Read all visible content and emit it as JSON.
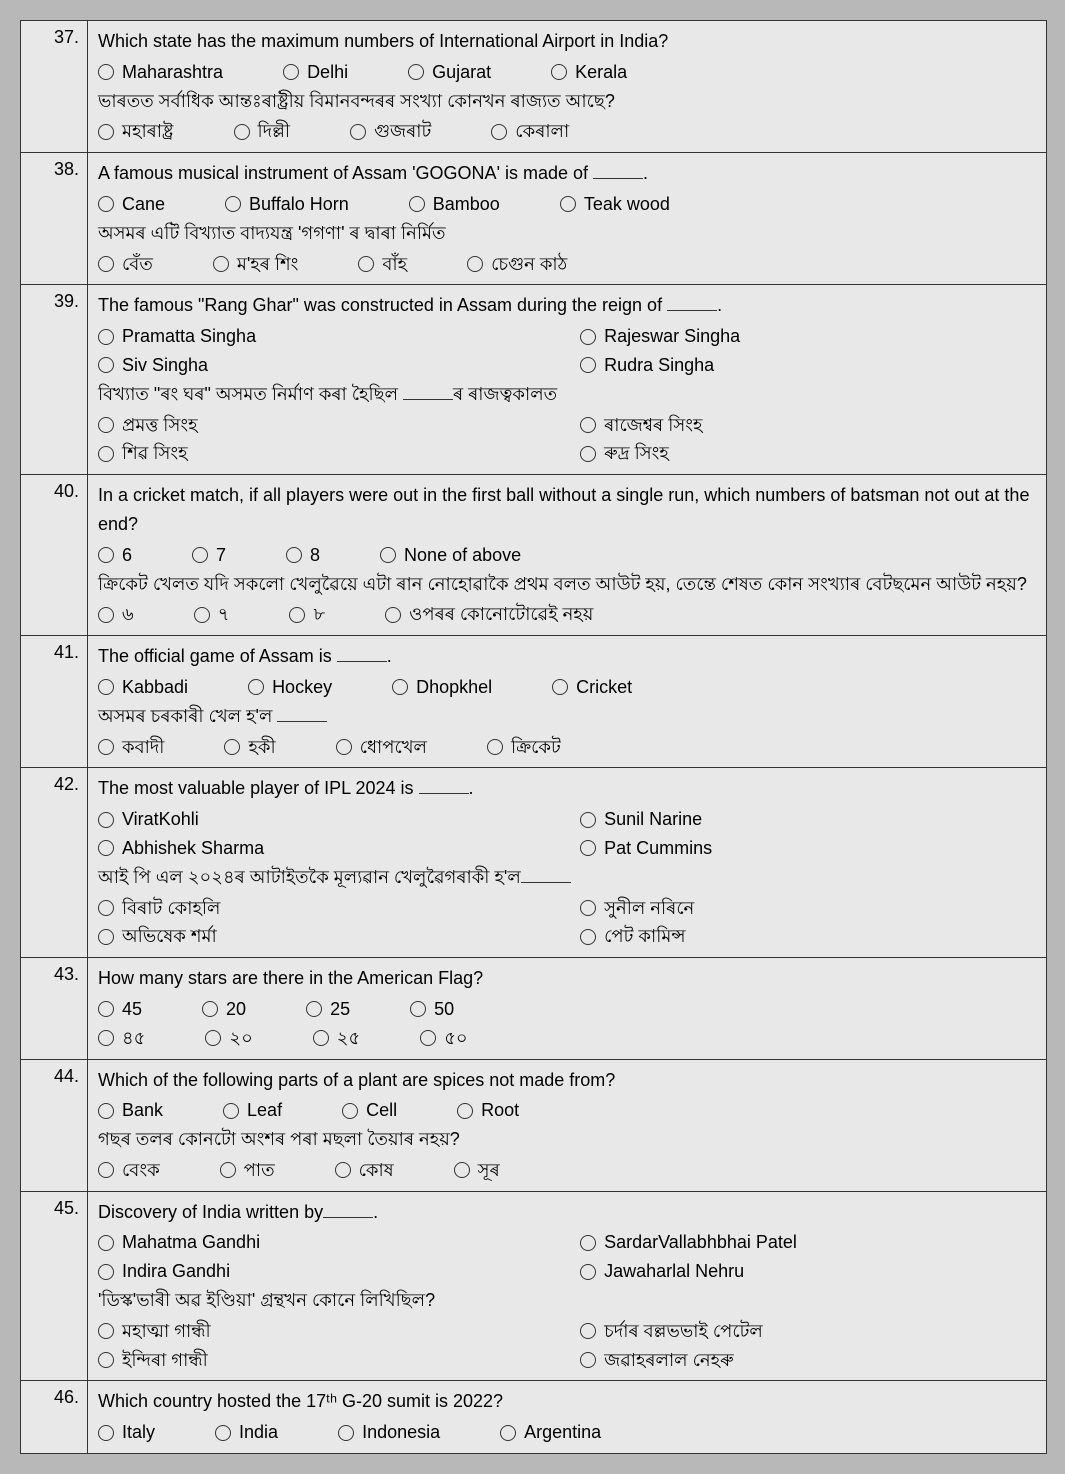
{
  "questions": [
    {
      "num": "37.",
      "text_en": "Which state has the maximum numbers of International Airport in India?",
      "opts_en": [
        "Maharashtra",
        "Delhi",
        "Gujarat",
        "Kerala"
      ],
      "text_as": "ভাৰতত সৰ্বাধিক আন্তঃৰাষ্ট্ৰীয় বিমানবন্দৰৰ সংখ্যা কোনখন ৰাজ্যত আছে?",
      "opts_as": [
        "মহাৰাষ্ট্ৰ",
        "দিল্লী",
        "গুজৰাট",
        "কেৰালা"
      ]
    },
    {
      "num": "38.",
      "text_en_pre": "A famous musical instrument of Assam 'GOGONA' is made of ",
      "text_en_post": ".",
      "opts_en": [
        "Cane",
        "Buffalo Horn",
        "Bamboo",
        "Teak wood"
      ],
      "text_as": "অসমৰ এটি বিখ্যাত বাদ্যযন্ত্ৰ 'গগণা' ৰ দ্বাৰা নিৰ্মিত",
      "opts_as": [
        "বেঁত",
        "ম'হৰ শিং",
        "বাঁহ",
        "চেগুন কাঠ"
      ]
    },
    {
      "num": "39.",
      "text_en_pre": "The famous \"Rang Ghar\" was constructed in Assam during the reign of ",
      "text_en_post": ".",
      "opts_en": [
        "Pramatta Singha",
        "Rajeswar Singha",
        "Siv Singha",
        "Rudra Singha"
      ],
      "text_as_pre": "বিখ্যাত \"ৰং ঘৰ\" অসমত নিৰ্মাণ কৰা হৈছিল ",
      "text_as_post": "ৰ ৰাজত্বকালত",
      "opts_as": [
        "প্ৰমত্ত সিংহ",
        "ৰাজেশ্বৰ সিংহ",
        "শিৱ সিংহ",
        "ৰুদ্ৰ সিংহ"
      ]
    },
    {
      "num": "40.",
      "text_en": "In a cricket match, if all players were out in the first ball without a single run, which numbers of batsman not out at the end?",
      "opts_en": [
        "6",
        "7",
        "8",
        "None of above"
      ],
      "text_as": "ক্ৰিকেট খেলত যদি সকলো খেলুৱৈয়ে এটা ৰান নোহোৱাকৈ প্ৰথম বলত আউট হয়, তেন্তে শেষত কোন সংখ্যাৰ বেটছমেন আউট নহয়?",
      "opts_as": [
        "৬",
        "৭",
        "৮",
        "ওপৰৰ কোনোটোৱেই নহয়"
      ]
    },
    {
      "num": "41.",
      "text_en_pre": "The official game of Assam is ",
      "text_en_post": ".",
      "opts_en": [
        "Kabbadi",
        "Hockey",
        "Dhopkhel",
        "Cricket"
      ],
      "text_as_pre": "অসমৰ চৰকাৰী খেল হ'ল ",
      "text_as_post": "",
      "opts_as": [
        "কবাদী",
        "হকী",
        "ধোপখেল",
        "ক্ৰিকেট"
      ]
    },
    {
      "num": "42.",
      "text_en_pre": "The most valuable player of IPL 2024 is ",
      "text_en_post": ".",
      "opts_en": [
        "ViratKohli",
        "Sunil Narine",
        "Abhishek Sharma",
        "Pat Cummins"
      ],
      "text_as_pre": "আই পি এল ২০২৪ৰ আটাইতকৈ মূল্যৱান খেলুৱৈগৰাকী হ'ল",
      "text_as_post": "",
      "opts_as": [
        "বিৰাট কোহলি",
        "সুনীল নৰিনে",
        "অভিষেক শৰ্মা",
        "পেট কামিন্স"
      ]
    },
    {
      "num": "43.",
      "text_en": "How many stars are there in the American Flag?",
      "opts_en": [
        "45",
        "20",
        "25",
        "50"
      ],
      "opts_as": [
        "৪৫",
        "২০",
        "২৫",
        "৫০"
      ]
    },
    {
      "num": "44.",
      "text_en": "Which of the following parts of a plant are spices not made from?",
      "opts_en": [
        "Bank",
        "Leaf",
        "Cell",
        "Root"
      ],
      "text_as": "গছৰ তলৰ কোনটো অংশৰ পৰা মছলা তৈয়াৰ নহয়?",
      "opts_as": [
        "বেংক",
        "পাত",
        "কোষ",
        "সূৰ"
      ]
    },
    {
      "num": "45.",
      "text_en_pre": "Discovery of India written by",
      "text_en_post": ".",
      "opts_en": [
        "Mahatma Gandhi",
        "SardarVallabhbhai Patel",
        "Indira Gandhi",
        "Jawaharlal Nehru"
      ],
      "text_as": "'ডিস্ক'ভাৰী অৱ ইণ্ডিয়া' গ্ৰন্থখন কোনে লিখিছিল?",
      "opts_as": [
        "মহাত্মা গান্ধী",
        "চৰ্দাৰ বল্লভভাই পেটেল",
        "ইন্দিৰা গান্ধী",
        "জৱাহৰলাল নেহৰু"
      ]
    },
    {
      "num": "46.",
      "text_en": "Which country hosted the 17ᵗʰ G-20 sumit is 2022?",
      "opts_en": [
        "Italy",
        "India",
        "Indonesia",
        "Argentina"
      ]
    }
  ],
  "style": {
    "font_size": 18,
    "row_border_color": "#333333",
    "background_color": "#e8e8e8",
    "page_background": "#b8b8b8",
    "bullet_border": "#333333"
  }
}
